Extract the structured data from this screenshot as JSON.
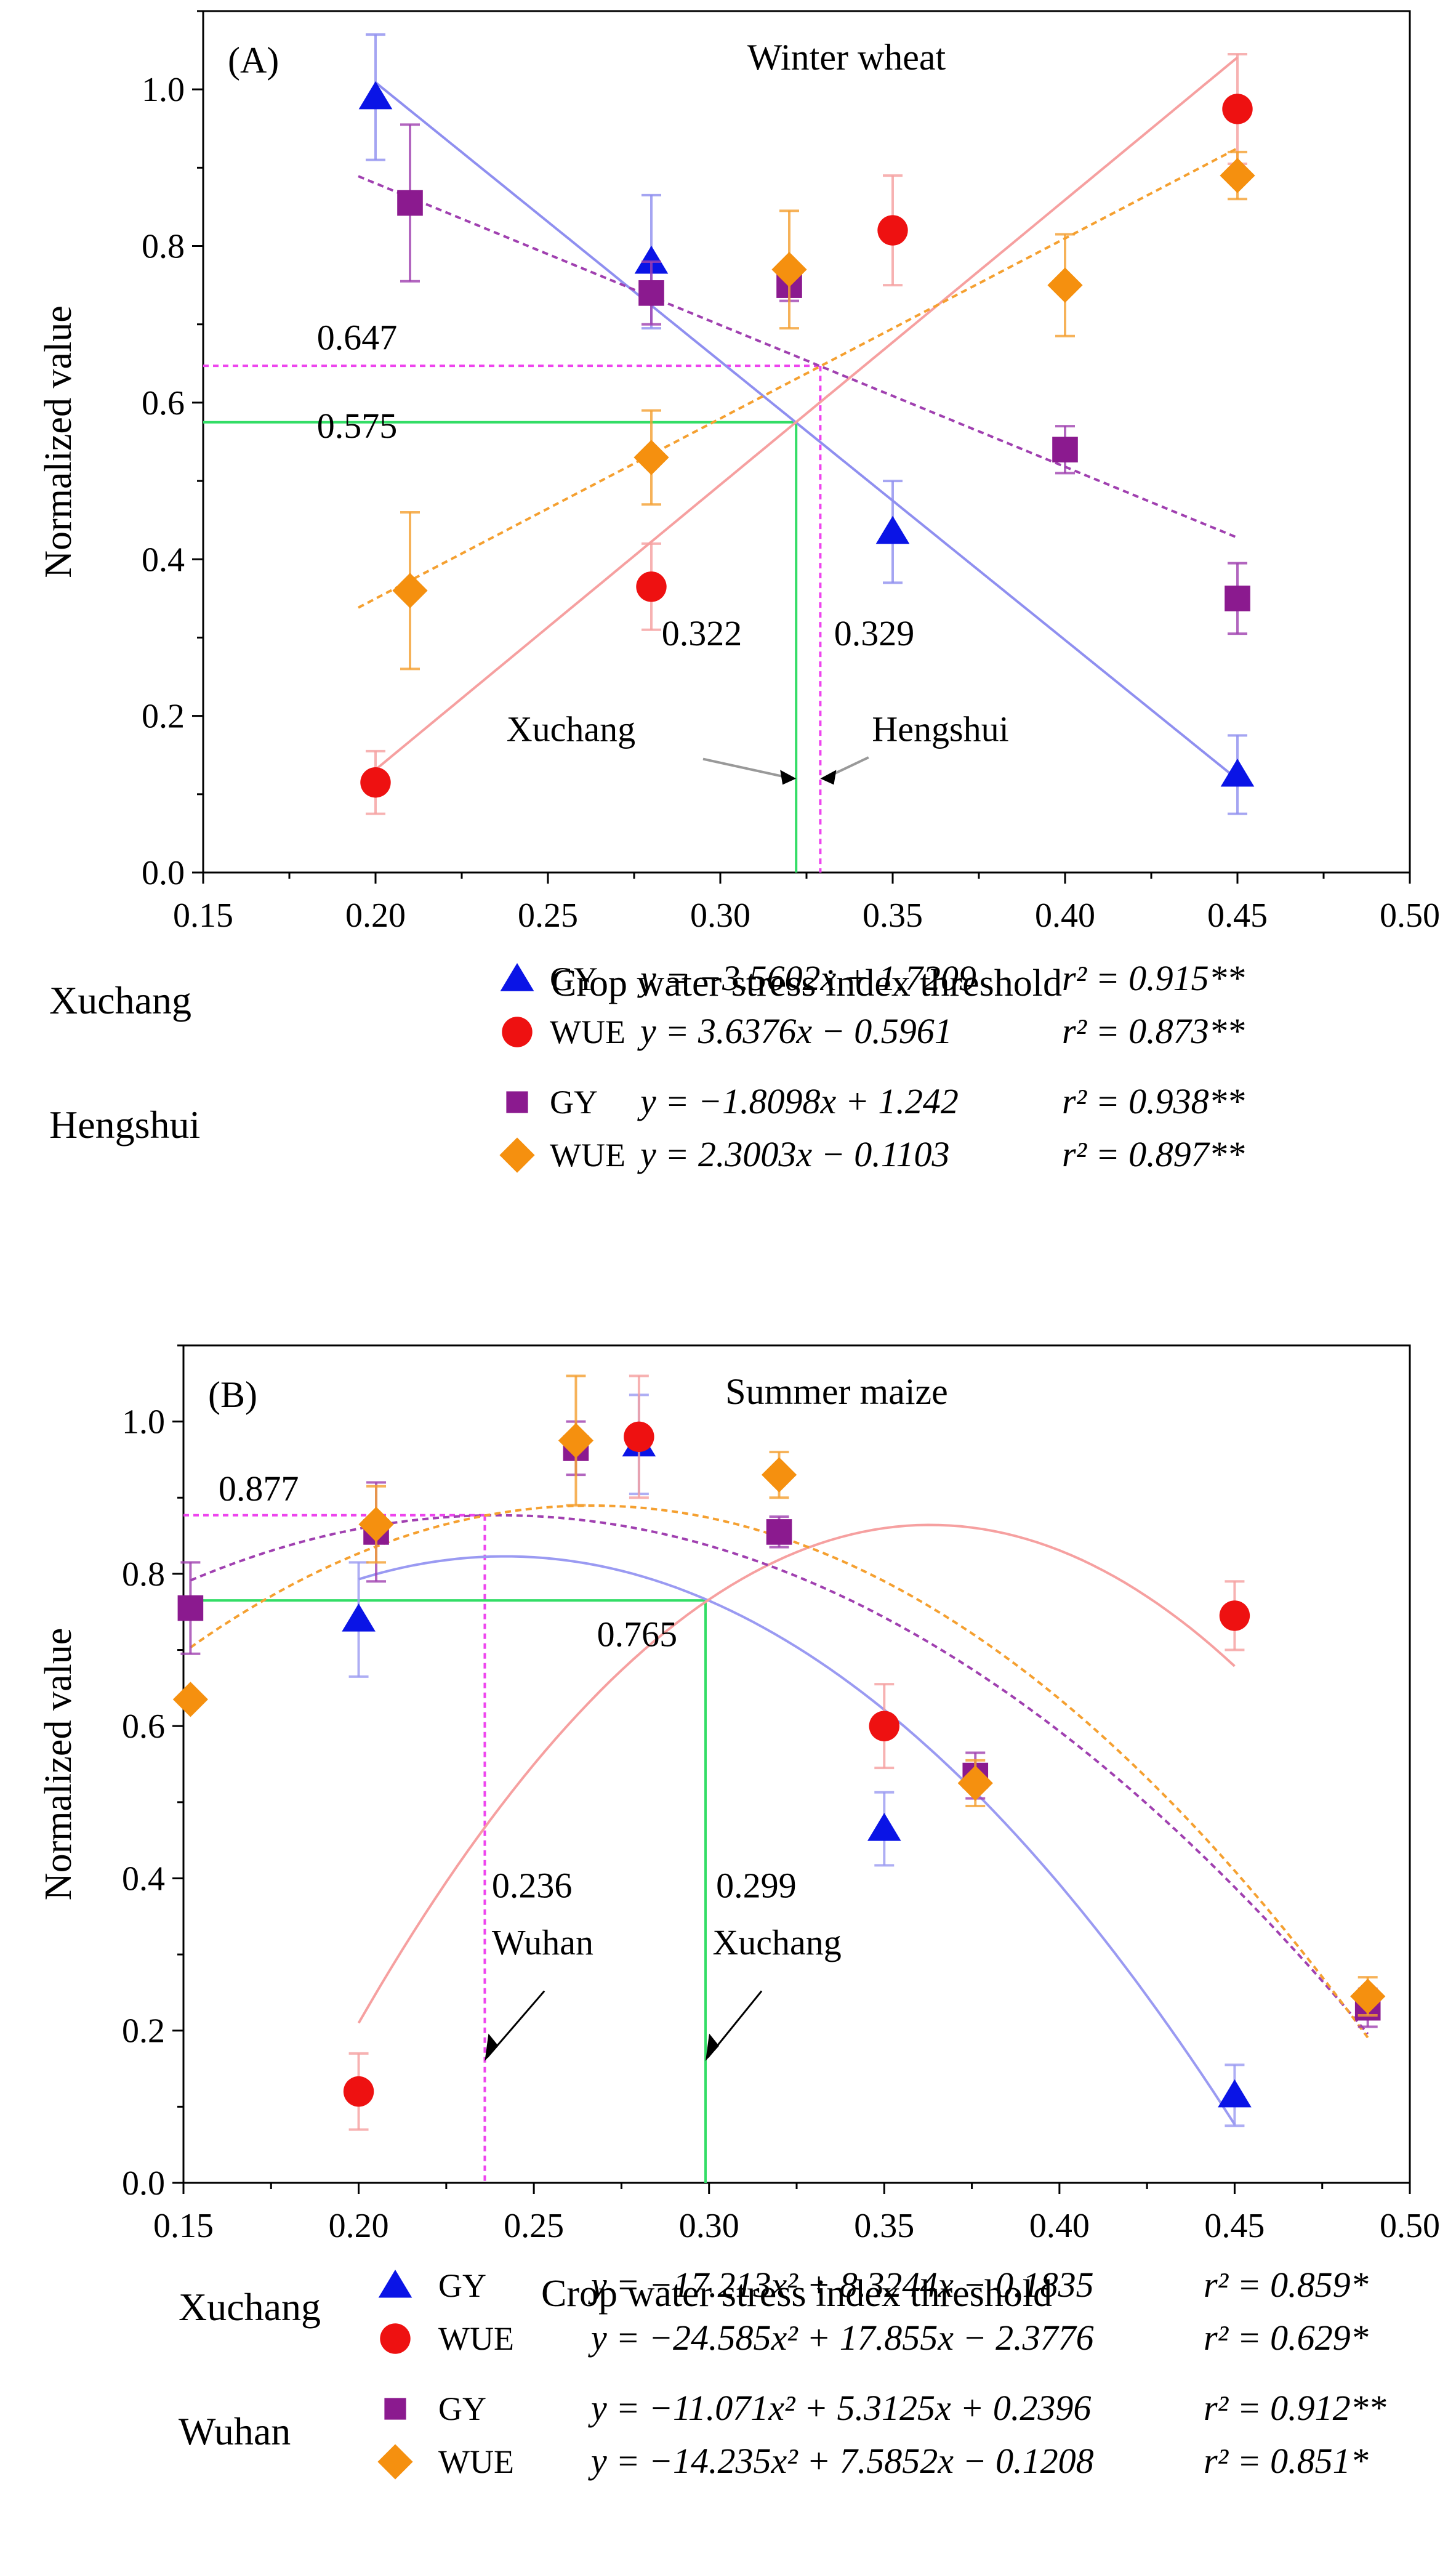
{
  "chart_data": [
    {
      "type": "scatter",
      "panel_label": "(A)",
      "title": "Winter wheat",
      "xlabel": "Crop water stress index threshold",
      "ylabel": "Normalized value",
      "xlim": [
        0.15,
        0.5
      ],
      "ylim": [
        0.0,
        1.1
      ],
      "xticks": [
        "0.15",
        "0.20",
        "0.25",
        "0.30",
        "0.35",
        "0.40",
        "0.45",
        "0.50"
      ],
      "yticks": [
        "0.0",
        "0.2",
        "0.4",
        "0.6",
        "0.8",
        "1.0"
      ],
      "series": [
        {
          "name": "Xuchang GY",
          "marker": "triangle",
          "color": "#0a14e6",
          "line_color": "#8f8ff0",
          "line_style": "solid",
          "x": [
            0.2,
            0.28,
            0.35,
            0.45
          ],
          "y": [
            0.99,
            0.78,
            0.435,
            0.125
          ],
          "err": [
            0.08,
            0.085,
            0.065,
            0.05
          ],
          "fit": {
            "kind": "linear",
            "a": -3.5602,
            "b": 1.7209,
            "x_range": [
              0.2,
              0.45
            ]
          }
        },
        {
          "name": "Xuchang WUE",
          "marker": "circle",
          "color": "#ee1111",
          "line_color": "#f6a0a0",
          "line_style": "solid",
          "x": [
            0.2,
            0.28,
            0.35,
            0.45
          ],
          "y": [
            0.115,
            0.365,
            0.82,
            0.975
          ],
          "err": [
            0.04,
            0.055,
            0.07,
            0.07
          ],
          "fit": {
            "kind": "linear",
            "a": 3.6376,
            "b": -0.5961,
            "x_range": [
              0.2,
              0.45
            ]
          }
        },
        {
          "name": "Hengshui GY",
          "marker": "square",
          "color": "#8b1a8f",
          "line_color": "#a040b0",
          "line_style": "dotted",
          "x": [
            0.21,
            0.28,
            0.32,
            0.4,
            0.45
          ],
          "y": [
            0.855,
            0.74,
            0.75,
            0.54,
            0.35
          ],
          "err": [
            0.1,
            0.04,
            0.02,
            0.03,
            0.045
          ],
          "fit": {
            "kind": "linear",
            "a": -1.8098,
            "b": 1.242,
            "x_range": [
              0.195,
              0.45
            ]
          }
        },
        {
          "name": "Hengshui WUE",
          "marker": "diamond",
          "color": "#f5900f",
          "line_color": "#f5a030",
          "line_style": "dotted",
          "x": [
            0.21,
            0.28,
            0.32,
            0.4,
            0.45
          ],
          "y": [
            0.36,
            0.53,
            0.77,
            0.75,
            0.89
          ],
          "err": [
            0.1,
            0.06,
            0.075,
            0.065,
            0.03
          ],
          "fit": {
            "kind": "linear",
            "a": 2.3003,
            "b": -0.1103,
            "x_range": [
              0.195,
              0.45
            ]
          }
        }
      ],
      "reference_lines": [
        {
          "site": "Hengshui",
          "x": 0.329,
          "y": 0.647,
          "color": "#ee44ee",
          "style": "dotted"
        },
        {
          "site": "Xuchang",
          "x": 0.322,
          "y": 0.575,
          "color": "#33dd66",
          "style": "solid"
        }
      ],
      "annotations": [
        {
          "text": "0.647",
          "x": 0.183,
          "y": 0.668
        },
        {
          "text": "0.575",
          "x": 0.183,
          "y": 0.555
        },
        {
          "text": "0.322",
          "x": 0.283,
          "y": 0.29
        },
        {
          "text": "0.329",
          "x": 0.333,
          "y": 0.29
        },
        {
          "text": "Xuchang",
          "x": 0.238,
          "y": 0.168
        },
        {
          "text": "Hengshui",
          "x": 0.344,
          "y": 0.168
        }
      ],
      "legend": [
        {
          "group": "Xuchang",
          "label": "GY",
          "marker": "triangle",
          "color": "#0a14e6",
          "equation": "y = −3.5602x + 1.7209",
          "r2": "r² = 0.915**"
        },
        {
          "group": "",
          "label": "WUE",
          "marker": "circle",
          "color": "#ee1111",
          "equation": "y =   3.6376x − 0.5961",
          "r2": "r² = 0.873**"
        },
        {
          "group": "Hengshui",
          "label": "GY",
          "marker": "square",
          "color": "#8b1a8f",
          "equation": "y = −1.8098x + 1.242",
          "r2": "r² = 0.938**"
        },
        {
          "group": "",
          "label": "WUE",
          "marker": "diamond",
          "color": "#f5900f",
          "equation": "y =   2.3003x − 0.1103",
          "r2": "r² = 0.897**"
        }
      ]
    },
    {
      "type": "scatter",
      "panel_label": "(B)",
      "title": "Summer maize",
      "xlabel": "Crop water stress index threshold",
      "ylabel": "Normalized value",
      "xlim": [
        0.15,
        0.5
      ],
      "ylim": [
        0.0,
        1.1
      ],
      "xticks": [
        "0.15",
        "0.20",
        "0.25",
        "0.30",
        "0.35",
        "0.40",
        "0.45",
        "0.50"
      ],
      "yticks": [
        "0.0",
        "0.2",
        "0.4",
        "0.6",
        "0.8",
        "1.0"
      ],
      "series": [
        {
          "name": "Xuchang GY",
          "marker": "triangle",
          "color": "#0a14e6",
          "line_color": "#9a9af2",
          "line_style": "solid",
          "x": [
            0.2,
            0.28,
            0.35,
            0.45
          ],
          "y": [
            0.74,
            0.97,
            0.465,
            0.115
          ],
          "err": [
            0.075,
            0.065,
            0.048,
            0.04
          ],
          "fit": {
            "kind": "quadratic",
            "a": -17.213,
            "b": 8.3244,
            "c": -0.1835,
            "x_range": [
              0.2,
              0.45
            ]
          }
        },
        {
          "name": "Xuchang WUE",
          "marker": "circle",
          "color": "#ee1111",
          "line_color": "#f6a0a0",
          "line_style": "solid",
          "x": [
            0.2,
            0.28,
            0.35,
            0.45
          ],
          "y": [
            0.12,
            0.98,
            0.6,
            0.745
          ],
          "err": [
            0.05,
            0.08,
            0.055,
            0.045
          ],
          "fit": {
            "kind": "quadratic",
            "a": -24.585,
            "b": 17.855,
            "c": -2.3776,
            "x_range": [
              0.2,
              0.45
            ]
          }
        },
        {
          "name": "Wuhan GY",
          "marker": "square",
          "color": "#8b1a8f",
          "line_color": "#a040b0",
          "line_style": "dotted",
          "x": [
            0.152,
            0.205,
            0.262,
            0.32,
            0.376,
            0.488
          ],
          "y": [
            0.755,
            0.855,
            0.965,
            0.855,
            0.535,
            0.23
          ],
          "err": [
            0.06,
            0.065,
            0.035,
            0.02,
            0.03,
            0.025
          ],
          "fit": {
            "kind": "quadratic",
            "a": -11.071,
            "b": 5.3125,
            "c": 0.2396,
            "x_range": [
              0.152,
              0.488
            ]
          }
        },
        {
          "name": "Wuhan WUE",
          "marker": "diamond",
          "color": "#f5900f",
          "line_color": "#f5a030",
          "line_style": "dotted",
          "x": [
            0.152,
            0.205,
            0.262,
            0.32,
            0.376,
            0.488
          ],
          "y": [
            0.635,
            0.865,
            0.975,
            0.93,
            0.525,
            0.245
          ],
          "err": [
            0.0,
            0.05,
            0.085,
            0.03,
            0.03,
            0.025
          ],
          "fit": {
            "kind": "quadratic",
            "a": -14.235,
            "b": 7.5852,
            "c": -0.1208,
            "x_range": [
              0.152,
              0.488
            ]
          }
        }
      ],
      "reference_lines": [
        {
          "site": "Wuhan",
          "x": 0.236,
          "y": 0.877,
          "color": "#ee44ee",
          "style": "dotted"
        },
        {
          "site": "Xuchang",
          "x": 0.299,
          "y": 0.765,
          "color": "#33dd66",
          "style": "solid"
        }
      ],
      "annotations": [
        {
          "text": "0.877",
          "x": 0.16,
          "y": 0.896
        },
        {
          "text": "0.765",
          "x": 0.268,
          "y": 0.705
        },
        {
          "text": "0.236",
          "x": 0.238,
          "y": 0.375
        },
        {
          "text": "0.299",
          "x": 0.302,
          "y": 0.375
        },
        {
          "text": "Wuhan",
          "x": 0.238,
          "y": 0.3
        },
        {
          "text": "Xuchang",
          "x": 0.301,
          "y": 0.3
        }
      ],
      "legend": [
        {
          "group": "Xuchang",
          "label": "GY",
          "marker": "triangle",
          "color": "#0a14e6",
          "equation": "y = −17.213x² + 8.3244x − 0.1835",
          "r2": "r² = 0.859*"
        },
        {
          "group": "",
          "label": "WUE",
          "marker": "circle",
          "color": "#ee1111",
          "equation": "y = −24.585x² + 17.855x − 2.3776",
          "r2": "r² = 0.629*"
        },
        {
          "group": "Wuhan",
          "label": "GY",
          "marker": "square",
          "color": "#8b1a8f",
          "equation": "y = −11.071x² + 5.3125x + 0.2396",
          "r2": "r² = 0.912**"
        },
        {
          "group": "",
          "label": "WUE",
          "marker": "diamond",
          "color": "#f5900f",
          "equation": "y = −14.235x² + 7.5852x − 0.1208",
          "r2": "r² = 0.851*"
        }
      ]
    }
  ]
}
